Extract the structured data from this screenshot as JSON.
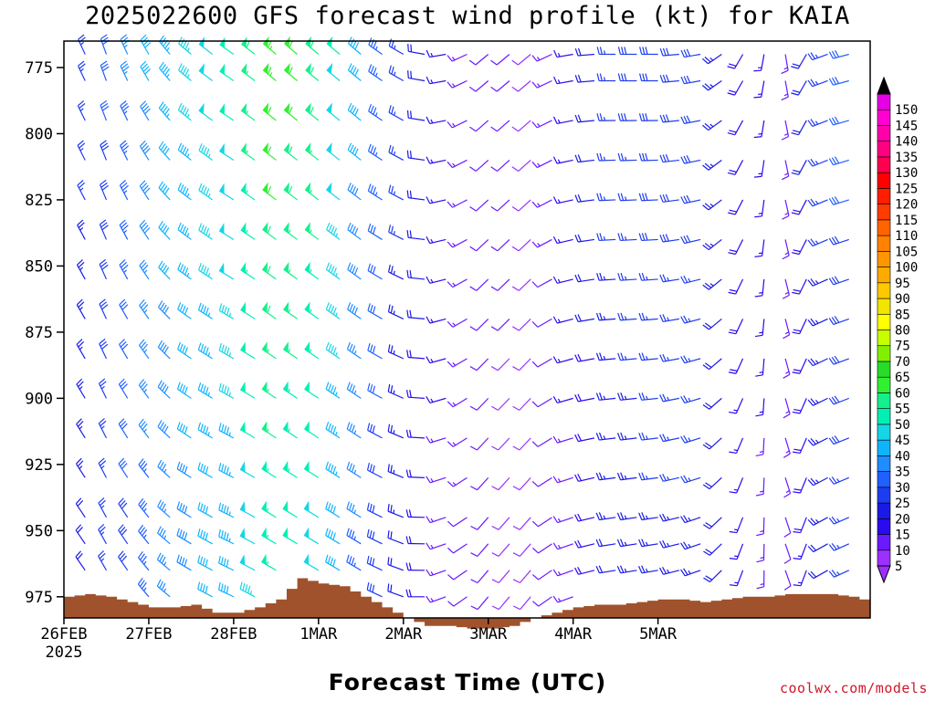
{
  "chart_data": {
    "type": "wind_barb_time_height",
    "title": "2025022600 GFS forecast wind profile (kt) for KAIA",
    "xlabel": "Forecast Time (UTC)",
    "credit": "coolwx.com/models",
    "x_ticks": [
      "26FEB",
      "27FEB",
      "28FEB",
      "1MAR",
      "2MAR",
      "3MAR",
      "4MAR",
      "5MAR"
    ],
    "x_year_label": "2025",
    "y_ticks": [
      775,
      800,
      825,
      850,
      875,
      900,
      925,
      950,
      975
    ],
    "ylabel": "",
    "ylim_hpa": [
      765,
      983
    ],
    "x_range_hours": [
      0,
      228
    ],
    "barb_interval_hours": 6,
    "barb_levels_hpa": [
      770,
      780,
      795,
      810,
      825,
      840,
      855,
      870,
      885,
      900,
      915,
      930,
      945,
      955,
      965,
      975
    ],
    "terrain_color": "#a0522d",
    "terrain_surface_pressure_hpa": {
      "hours": [
        0,
        6,
        12,
        18,
        24,
        30,
        36,
        42,
        48,
        54,
        60,
        66,
        72,
        78,
        84,
        90,
        96,
        102,
        108,
        114,
        120,
        126,
        132,
        138,
        144,
        150,
        156,
        162,
        168,
        174,
        180,
        186,
        192,
        198,
        204,
        210,
        216,
        222,
        228
      ],
      "values": [
        975,
        974,
        975,
        977,
        979,
        979,
        978,
        981,
        981,
        979,
        976,
        968,
        970,
        971,
        975,
        979,
        983,
        986,
        986,
        987,
        987,
        986,
        983,
        981,
        979,
        978,
        978,
        977,
        976,
        976,
        977,
        976,
        975,
        975,
        974,
        974,
        974,
        975,
        977
      ]
    },
    "wind_kt_by_time": {
      "hours": [
        0,
        12,
        24,
        36,
        48,
        60,
        72,
        84,
        96,
        108,
        120,
        132,
        144,
        156,
        168,
        180,
        192,
        204,
        216,
        228
      ],
      "speed": [
        18,
        25,
        33,
        38,
        42,
        52,
        48,
        34,
        22,
        14,
        10,
        8,
        14,
        22,
        24,
        24,
        16,
        12,
        22,
        30
      ],
      "direction_deg": [
        320,
        330,
        320,
        300,
        295,
        300,
        300,
        300,
        290,
        250,
        220,
        220,
        250,
        260,
        260,
        250,
        200,
        160,
        240,
        250
      ]
    },
    "colorbar": {
      "unit": "kt",
      "ticks": [
        5,
        10,
        15,
        20,
        25,
        30,
        35,
        40,
        45,
        50,
        55,
        60,
        65,
        70,
        75,
        80,
        85,
        90,
        95,
        100,
        105,
        110,
        115,
        120,
        125,
        130,
        135,
        140,
        145,
        150
      ],
      "colors": [
        "#9b30ff",
        "#6a1aff",
        "#2a0bf0",
        "#1a1ae6",
        "#1f3df0",
        "#2060ff",
        "#1f8cff",
        "#0fb4ff",
        "#16d6e6",
        "#00f0b4",
        "#14f08c",
        "#30f030",
        "#28dc28",
        "#80f000",
        "#c8ff00",
        "#ffff00",
        "#f0e600",
        "#ffc800",
        "#ffaa00",
        "#ff9600",
        "#ff8200",
        "#ff6400",
        "#ff3c00",
        "#ff1e00",
        "#ff0000",
        "#ff0050",
        "#ff0080",
        "#ff00aa",
        "#ff00d2",
        "#e600e6"
      ]
    }
  }
}
